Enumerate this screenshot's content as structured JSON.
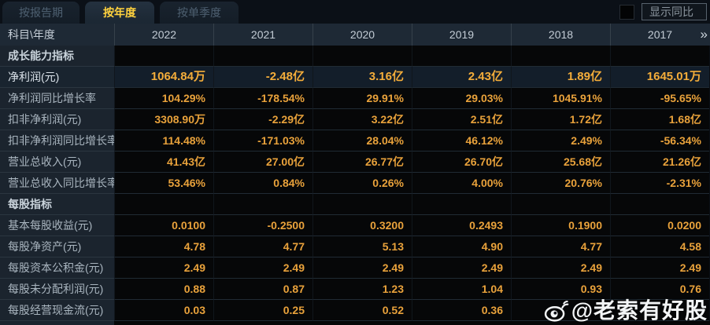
{
  "tabs": [
    {
      "label": "按报告期",
      "selected": false
    },
    {
      "label": "按年度",
      "selected": true
    },
    {
      "label": "按单季度",
      "selected": false
    }
  ],
  "controls": {
    "show_yoy_label": "显示同比"
  },
  "table": {
    "corner_label": "科目\\年度",
    "years": [
      "2022",
      "2021",
      "2020",
      "2019",
      "2018",
      "2017"
    ],
    "more_columns_icon": "»",
    "rows": [
      {
        "type": "section",
        "label": "成长能力指标",
        "values": [
          "",
          "",
          "",
          "",
          "",
          ""
        ]
      },
      {
        "type": "data",
        "highlight": true,
        "label": "净利润(元)",
        "values": [
          "1064.84万",
          "-2.48亿",
          "3.16亿",
          "2.43亿",
          "1.89亿",
          "1645.01万"
        ]
      },
      {
        "type": "data",
        "label": "净利润同比增长率",
        "values": [
          "104.29%",
          "-178.54%",
          "29.91%",
          "29.03%",
          "1045.91%",
          "-95.65%"
        ]
      },
      {
        "type": "data",
        "label": "扣非净利润(元)",
        "values": [
          "3308.90万",
          "-2.29亿",
          "3.22亿",
          "2.51亿",
          "1.72亿",
          "1.68亿"
        ]
      },
      {
        "type": "data",
        "label": "扣非净利润同比增长率",
        "values": [
          "114.48%",
          "-171.03%",
          "28.04%",
          "46.12%",
          "2.49%",
          "-56.34%"
        ]
      },
      {
        "type": "data",
        "label": "营业总收入(元)",
        "values": [
          "41.43亿",
          "27.00亿",
          "26.77亿",
          "26.70亿",
          "25.68亿",
          "21.26亿"
        ]
      },
      {
        "type": "data",
        "label": "营业总收入同比增长率",
        "values": [
          "53.46%",
          "0.84%",
          "0.26%",
          "4.00%",
          "20.76%",
          "-2.31%"
        ]
      },
      {
        "type": "section",
        "label": "每股指标",
        "values": [
          "",
          "",
          "",
          "",
          "",
          ""
        ]
      },
      {
        "type": "data",
        "label": "基本每股收益(元)",
        "values": [
          "0.0100",
          "-0.2500",
          "0.3200",
          "0.2493",
          "0.1900",
          "0.0200"
        ]
      },
      {
        "type": "data",
        "label": "每股净资产(元)",
        "values": [
          "4.78",
          "4.77",
          "5.13",
          "4.90",
          "4.77",
          "4.58"
        ]
      },
      {
        "type": "data",
        "label": "每股资本公积金(元)",
        "values": [
          "2.49",
          "2.49",
          "2.49",
          "2.49",
          "2.49",
          "2.49"
        ]
      },
      {
        "type": "data",
        "label": "每股未分配利润(元)",
        "values": [
          "0.88",
          "0.87",
          "1.23",
          "1.04",
          "0.93",
          "0.76"
        ]
      },
      {
        "type": "data",
        "label": "每股经营现金流(元)",
        "values": [
          "0.03",
          "0.25",
          "0.52",
          "0.36",
          "",
          ""
        ]
      }
    ]
  },
  "watermark": {
    "text": "@老索有好股",
    "icon": "weibo-icon"
  },
  "colors": {
    "accent_gold": "#ffd23e",
    "value_gold": "#e9a23b",
    "highlight_row_bg": "#131e2a",
    "label_col_bg": "#1b242e",
    "header_bg": "#1e2935",
    "page_bg": "#0a0e14"
  }
}
